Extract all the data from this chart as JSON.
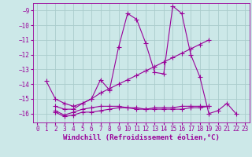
{
  "bg_color": "#cce8e8",
  "grid_color": "#aacccc",
  "line_color": "#990099",
  "marker": "+",
  "markersize": 4,
  "linewidth": 0.8,
  "xlabel": "Windchill (Refroidissement éolien,°C)",
  "xlabel_fontsize": 6.5,
  "tick_fontsize": 5.5,
  "xlim": [
    -0.5,
    23.5
  ],
  "ylim": [
    -16.6,
    -8.5
  ],
  "yticks": [
    -16,
    -15,
    -14,
    -13,
    -12,
    -11,
    -10,
    -9
  ],
  "xticks": [
    0,
    1,
    2,
    3,
    4,
    5,
    6,
    7,
    8,
    9,
    10,
    11,
    12,
    13,
    14,
    15,
    16,
    17,
    18,
    19,
    20,
    21,
    22,
    23
  ],
  "lines": [
    [
      null,
      -13.8,
      -15.0,
      -15.3,
      -15.5,
      -15.3,
      -15.0,
      -13.7,
      -14.4,
      -11.5,
      -9.2,
      -9.6,
      -11.2,
      -13.2,
      -13.3,
      -8.7,
      -9.2,
      -12.0,
      -13.5,
      -16.0,
      -15.8,
      -15.3,
      -16.0,
      null
    ],
    [
      null,
      null,
      -15.5,
      -15.7,
      -15.7,
      -15.3,
      -15.0,
      -14.6,
      -14.3,
      -14.0,
      -13.7,
      -13.4,
      -13.1,
      -12.8,
      -12.5,
      -12.2,
      -11.9,
      -11.6,
      -11.3,
      -11.0,
      null,
      null,
      null,
      null
    ],
    [
      null,
      null,
      -15.8,
      -16.1,
      -15.9,
      -15.7,
      -15.6,
      -15.5,
      -15.5,
      -15.5,
      -15.6,
      -15.7,
      -15.7,
      -15.7,
      -15.7,
      -15.7,
      -15.7,
      -15.6,
      -15.6,
      -15.5,
      null,
      null,
      null,
      null
    ],
    [
      null,
      null,
      -15.9,
      -16.2,
      -16.1,
      -15.9,
      -15.9,
      -15.8,
      -15.7,
      -15.6,
      -15.6,
      -15.6,
      -15.7,
      -15.6,
      -15.6,
      -15.6,
      -15.5,
      -15.5,
      -15.5,
      -15.5,
      null,
      null,
      null,
      null
    ]
  ]
}
